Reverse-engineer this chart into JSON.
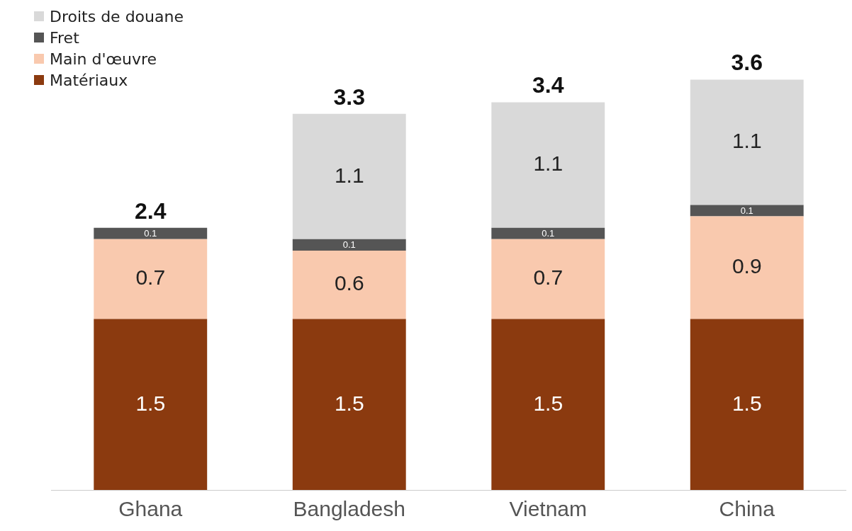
{
  "chart_data": {
    "type": "bar",
    "stacked": true,
    "categories": [
      "Ghana",
      "Bangladesh",
      "Vietnam",
      "China"
    ],
    "series": [
      {
        "name": "Matériaux",
        "color": "#8b3a0f",
        "values": [
          1.5,
          1.5,
          1.5,
          1.5
        ]
      },
      {
        "name": "Main d'œuvre",
        "color": "#f9c9ae",
        "values": [
          0.7,
          0.6,
          0.7,
          0.9
        ]
      },
      {
        "name": "Fret",
        "color": "#555555",
        "values": [
          0.1,
          0.1,
          0.1,
          0.1
        ]
      },
      {
        "name": "Droits de douane",
        "color": "#d9d9d9",
        "values": [
          null,
          1.1,
          1.1,
          1.1
        ]
      }
    ],
    "totals": [
      "2.4",
      "3.3",
      "3.4",
      "3.6"
    ],
    "data_labels": true,
    "legend": "top left"
  }
}
